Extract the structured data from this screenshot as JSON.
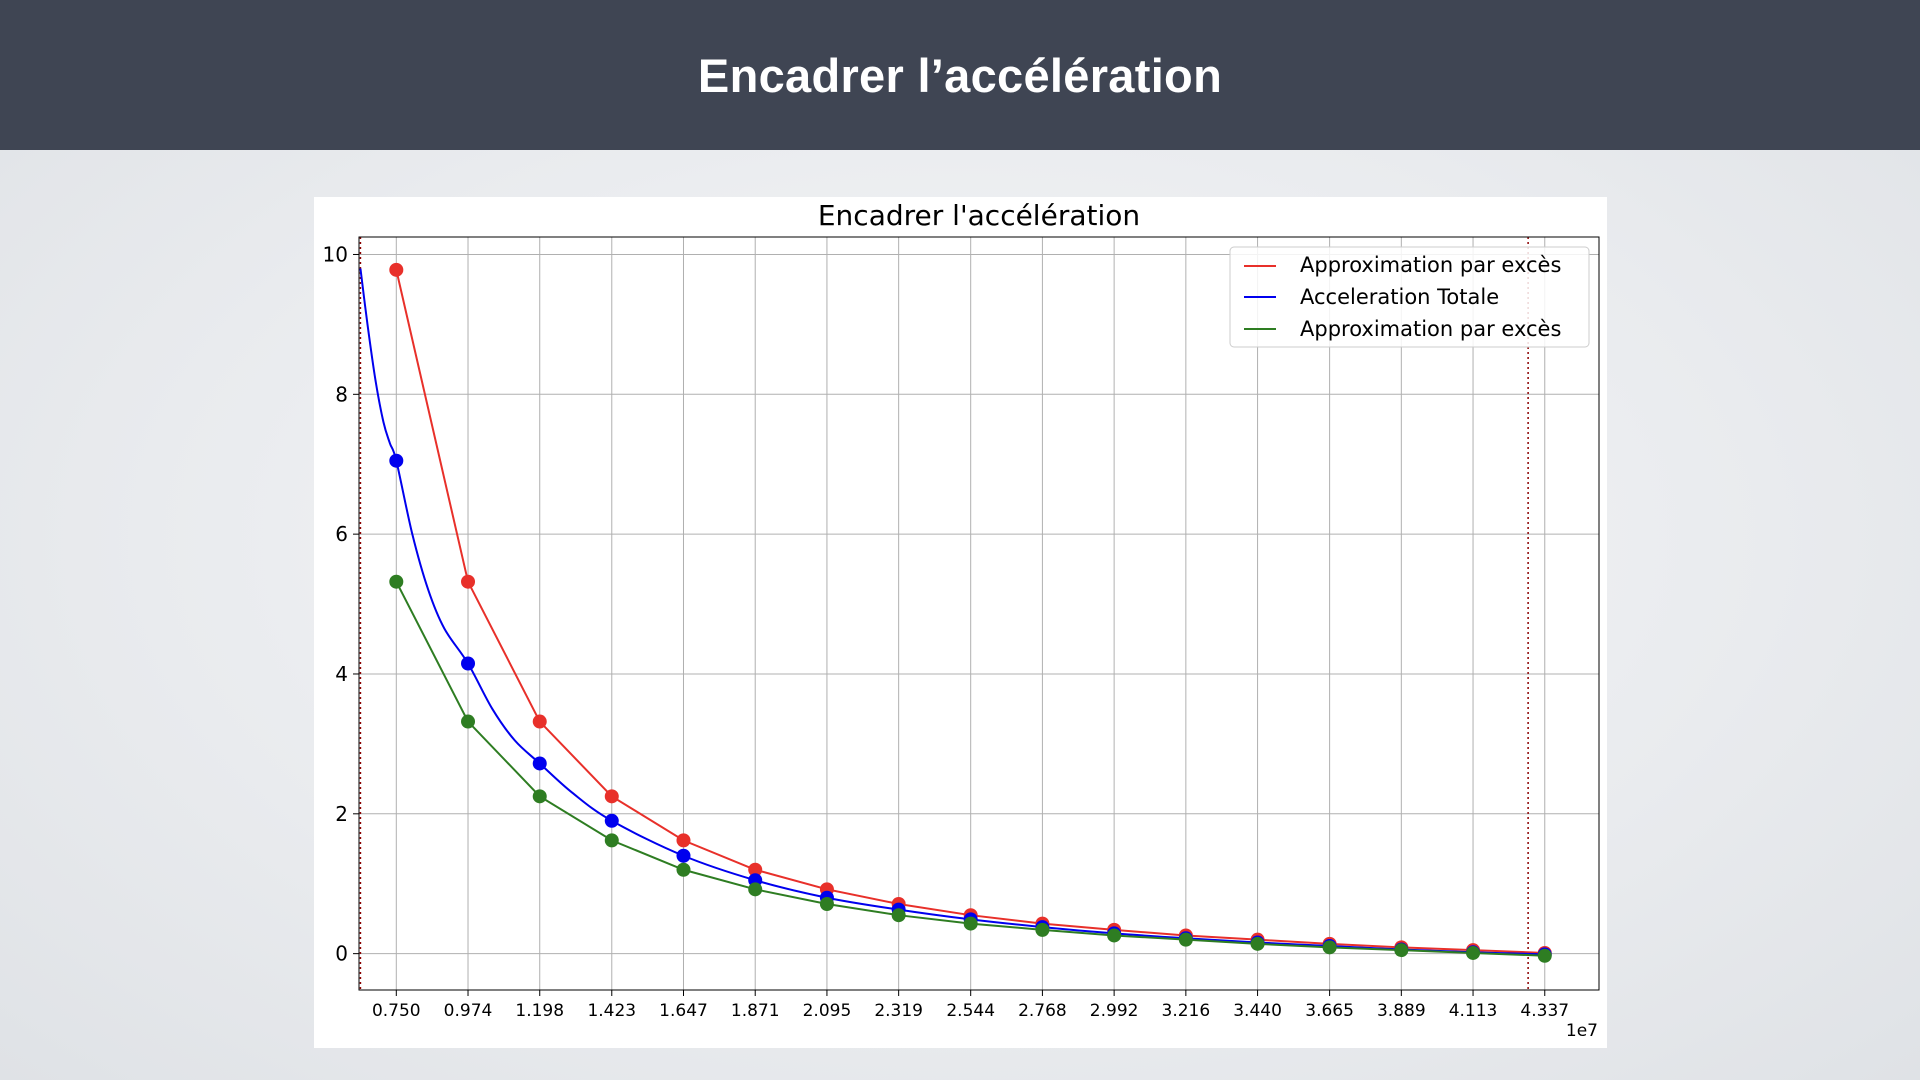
{
  "slide": {
    "title": "Encadrer l’accélération"
  },
  "chart_data": {
    "type": "line",
    "title": "Encadrer l'accélération",
    "xlabel": "",
    "ylabel": "",
    "x_offset_label": "1e7",
    "xlim": [
      0.6335,
      4.5064
    ],
    "ylim": [
      -0.52,
      10.25
    ],
    "grid": true,
    "legend_position": "upper right",
    "x_ticks": [
      0.75,
      0.974,
      1.198,
      1.423,
      1.647,
      1.871,
      2.095,
      2.319,
      2.544,
      2.768,
      2.992,
      3.216,
      3.44,
      3.665,
      3.889,
      4.113,
      4.337
    ],
    "x_tick_labels": [
      "0.750",
      "0.974",
      "1.198",
      "1.423",
      "1.647",
      "1.871",
      "2.095",
      "2.319",
      "2.544",
      "2.768",
      "2.992",
      "3.216",
      "3.440",
      "3.665",
      "3.889",
      "4.113",
      "4.337"
    ],
    "y_ticks": [
      0,
      2,
      4,
      6,
      8,
      10
    ],
    "y_tick_labels": [
      "0",
      "2",
      "4",
      "6",
      "8",
      "10"
    ],
    "vlines": [
      0.638,
      4.285
    ],
    "vline_color": "#8b0000",
    "series": [
      {
        "name": "Approximation par excès",
        "color": "#e8302a",
        "x": [
          0.75,
          0.974,
          1.198,
          1.423,
          1.647,
          1.871,
          2.095,
          2.319,
          2.544,
          2.768,
          2.992,
          3.216,
          3.44,
          3.665,
          3.889,
          4.113,
          4.337
        ],
        "values": [
          9.78,
          5.32,
          3.32,
          2.25,
          1.62,
          1.2,
          0.92,
          0.71,
          0.55,
          0.43,
          0.34,
          0.26,
          0.2,
          0.14,
          0.09,
          0.05,
          0.01
        ],
        "markers": true
      },
      {
        "name": "Acceleration Totale",
        "color": "#0000ee",
        "x": [
          0.638,
          0.66,
          0.685,
          0.71,
          0.73,
          0.75,
          0.8,
          0.85,
          0.9,
          0.974,
          1.05,
          1.12,
          1.198,
          1.3,
          1.423,
          1.647,
          1.871,
          2.095,
          2.319,
          2.544,
          2.768,
          2.992,
          3.216,
          3.44,
          3.665,
          3.889,
          4.113,
          4.337
        ],
        "values": [
          9.8,
          9.0,
          8.2,
          7.6,
          7.3,
          7.05,
          6.0,
          5.2,
          4.65,
          4.15,
          3.5,
          3.05,
          2.72,
          2.3,
          1.9,
          1.4,
          1.05,
          0.8,
          0.63,
          0.49,
          0.38,
          0.29,
          0.22,
          0.16,
          0.11,
          0.06,
          0.02,
          -0.01
        ],
        "markers_at": [
          0.75,
          0.974,
          1.198,
          1.423,
          1.647,
          1.871,
          2.095,
          2.319,
          2.544,
          2.768,
          2.992,
          3.216,
          3.44,
          3.665,
          3.889,
          4.113,
          4.337
        ]
      },
      {
        "name": "Approximation par excès",
        "color": "#2e7d22",
        "x": [
          0.75,
          0.974,
          1.198,
          1.423,
          1.647,
          1.871,
          2.095,
          2.319,
          2.544,
          2.768,
          2.992,
          3.216,
          3.44,
          3.665,
          3.889,
          4.113,
          4.337
        ],
        "values": [
          5.32,
          3.32,
          2.25,
          1.62,
          1.2,
          0.92,
          0.71,
          0.55,
          0.43,
          0.34,
          0.26,
          0.2,
          0.14,
          0.09,
          0.05,
          0.01,
          -0.03
        ],
        "markers": true
      }
    ]
  }
}
